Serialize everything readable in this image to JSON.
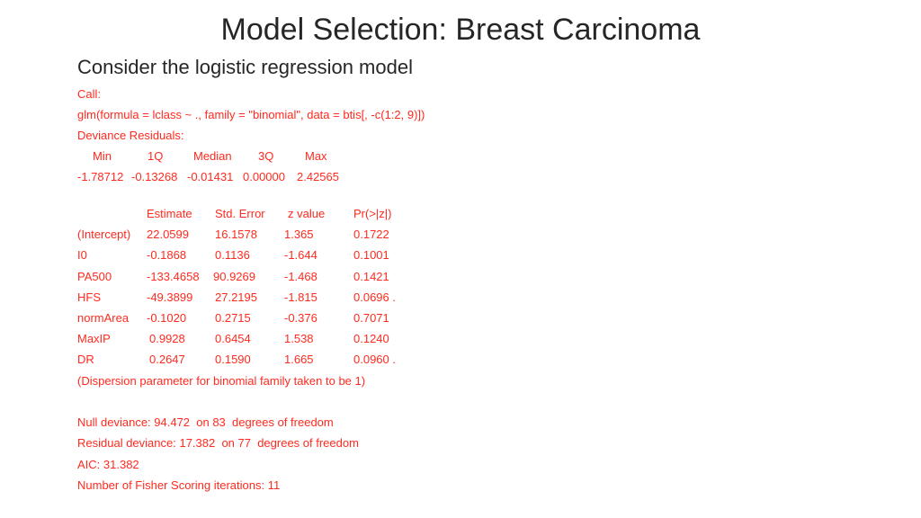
{
  "slide": {
    "title": "Model Selection: Breast Carcinoma",
    "subtitle": "Consider the logistic regression model"
  },
  "call_label": "Call:",
  "call_formula": "glm(formula = lclass ~ ., family = \"binomial\", data = btis[, -c(1:2, 9)])",
  "deviance_residuals": {
    "label": "Deviance Residuals:",
    "headers": [
      "Min",
      "1Q",
      "Median",
      "3Q",
      "Max"
    ],
    "values": [
      "-1.78712",
      "-0.13268",
      "-0.01431",
      "0.00000",
      "2.42565"
    ]
  },
  "coefficients": {
    "headers": [
      "",
      "Estimate",
      "Std. Error",
      "z value",
      "Pr(>|z|)"
    ],
    "rows": [
      {
        "name": "(Intercept)",
        "estimate": "22.0599",
        "std_error": "16.1578",
        "z_value": "1.365",
        "p_value": "0.1722"
      },
      {
        "name": "I0",
        "estimate": "-0.1868",
        "std_error": "0.1136",
        "z_value": "-1.644",
        "p_value": "0.1001"
      },
      {
        "name": "PA500",
        "estimate": "-133.4658",
        "std_error": "90.9269",
        "z_value": "-1.468",
        "p_value": "0.1421"
      },
      {
        "name": "HFS",
        "estimate": "-49.3899",
        "std_error": "27.2195",
        "z_value": "-1.815",
        "p_value": "0.0696 ."
      },
      {
        "name": "normArea",
        "estimate": "-0.1020",
        "std_error": "0.2715",
        "z_value": "-0.376",
        "p_value": "0.7071"
      },
      {
        "name": "MaxIP",
        "estimate": "0.9928",
        "std_error": "0.6454",
        "z_value": "1.538",
        "p_value": "0.1240"
      },
      {
        "name": "DR",
        "estimate": "0.2647",
        "std_error": "0.1590",
        "z_value": "1.665",
        "p_value": "0.0960 ."
      }
    ]
  },
  "dispersion_note": "(Dispersion parameter for binomial family taken to be 1)",
  "null_deviance": "Null deviance: 94.472  on 83  degrees of freedom",
  "residual_deviance": "Residual deviance: 17.382  on 77  degrees of freedom",
  "aic": "AIC: 31.382",
  "fisher_iterations": "Number of Fisher Scoring iterations: 11",
  "colors": {
    "output_text": "#ff2a1f",
    "heading_text": "#262626",
    "background": "#ffffff"
  }
}
